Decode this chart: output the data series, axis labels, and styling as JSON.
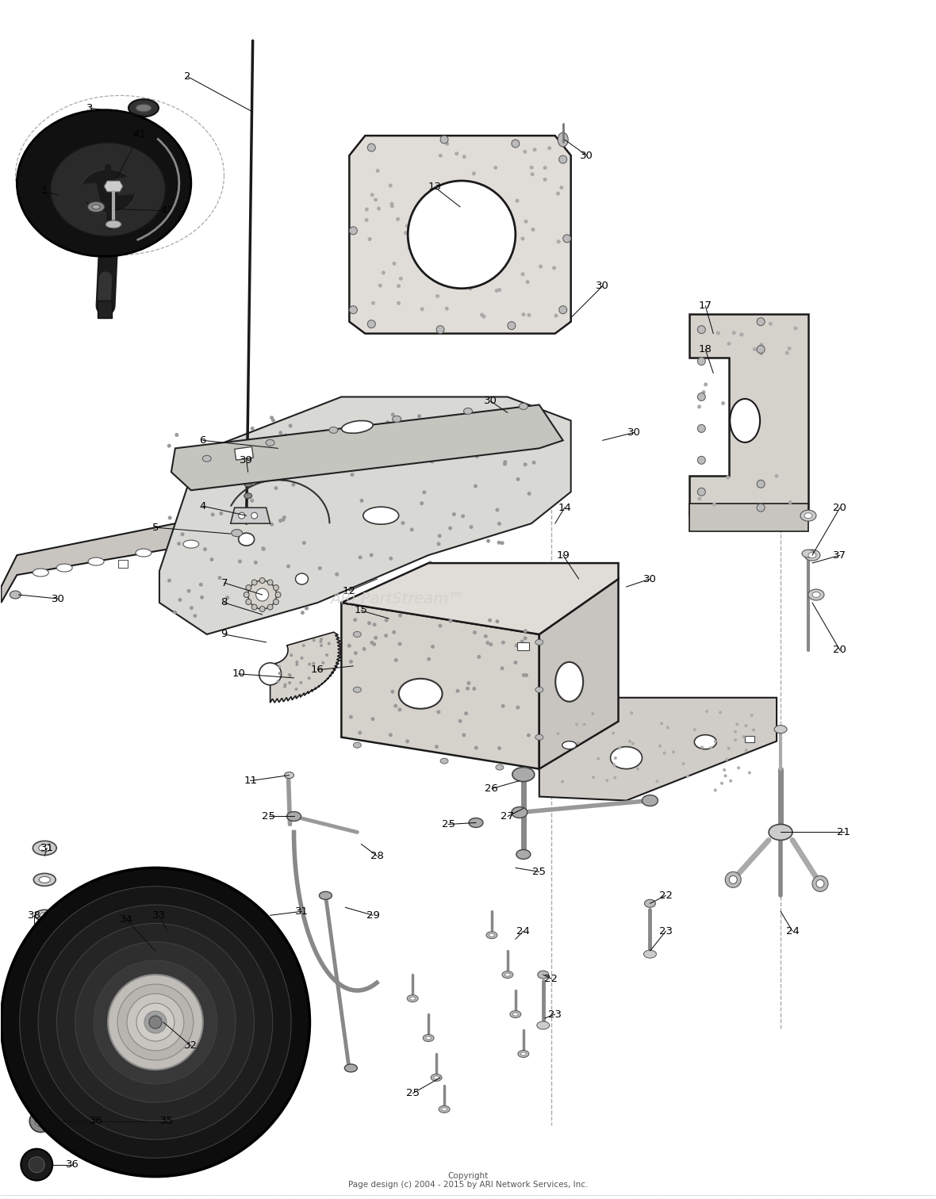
{
  "background_color": "#ffffff",
  "copyright_text": "Copyright\nPage design (c) 2004 - 2015 by ARI Network Services, Inc.",
  "watermark_text": "ARI PartStream™",
  "fig_width": 11.8,
  "fig_height": 15.12,
  "dpi": 100
}
